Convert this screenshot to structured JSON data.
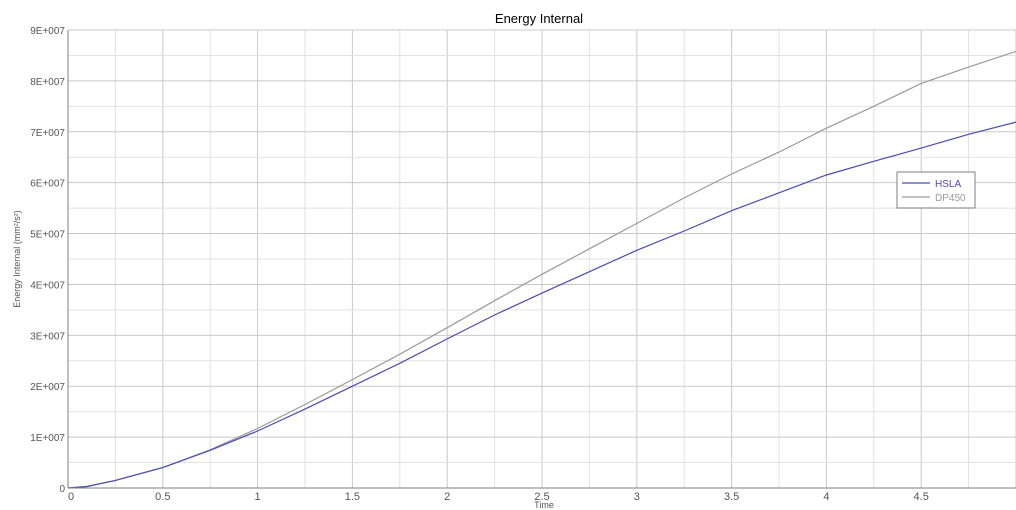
{
  "chart_data": {
    "type": "line",
    "title": "Energy Internal",
    "xlabel": "Time",
    "ylabel": "Energy Internal (mm²/s²)",
    "xlim": [
      0,
      5
    ],
    "ylim": [
      0,
      90000000
    ],
    "grid": true,
    "legend_position": "right",
    "x_ticks": [
      0,
      0.5,
      1,
      1.5,
      2,
      2.5,
      3,
      3.5,
      4,
      4.5
    ],
    "x_tick_labels": [
      "0",
      "0.5",
      "1",
      "1.5",
      "2",
      "2.5",
      "3",
      "3.5",
      "4",
      "4.5"
    ],
    "y_ticks": [
      0,
      10000000,
      20000000,
      30000000,
      40000000,
      50000000,
      60000000,
      70000000,
      80000000,
      90000000
    ],
    "y_tick_labels": [
      "0",
      "1E+007",
      "2E+007",
      "3E+007",
      "4E+007",
      "5E+007",
      "6E+007",
      "7E+007",
      "8E+007",
      "9E+007"
    ],
    "x": [
      0,
      0.1,
      0.25,
      0.5,
      0.75,
      1.0,
      1.25,
      1.5,
      1.75,
      2.0,
      2.25,
      2.5,
      2.75,
      3.0,
      3.25,
      3.5,
      3.75,
      4.0,
      4.25,
      4.5,
      4.75,
      5.0
    ],
    "series": [
      {
        "name": "HSLA",
        "color": "#4a4ab8",
        "values": [
          0,
          300000,
          1500000,
          4000000,
          7400000,
          11200000,
          15500000,
          20000000,
          24500000,
          29300000,
          34000000,
          38300000,
          42500000,
          46700000,
          50500000,
          54500000,
          58000000,
          61500000,
          64200000,
          66800000,
          69500000,
          71900000
        ]
      },
      {
        "name": "DP450",
        "color": "#9a9a9a",
        "values": [
          0,
          300000,
          1500000,
          4000000,
          7500000,
          11700000,
          16400000,
          21300000,
          26300000,
          31500000,
          36800000,
          42000000,
          47000000,
          52000000,
          57000000,
          61700000,
          66000000,
          70700000,
          75000000,
          79500000,
          82700000,
          85800000
        ]
      }
    ]
  }
}
